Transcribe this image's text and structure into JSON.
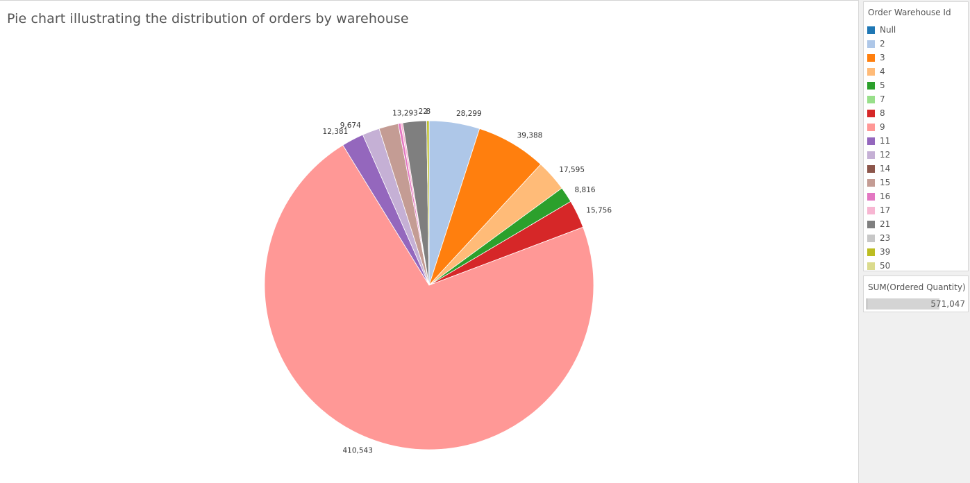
{
  "title": "Pie chart illustrating the distribution of orders by warehouse",
  "legend": {
    "title": "Order Warehouse Id",
    "items": [
      {
        "label": "Null",
        "color": "#1f77b4"
      },
      {
        "label": "2",
        "color": "#aec7e8"
      },
      {
        "label": "3",
        "color": "#ff7f0e"
      },
      {
        "label": "4",
        "color": "#ffbb78"
      },
      {
        "label": "5",
        "color": "#2ca02c"
      },
      {
        "label": "7",
        "color": "#98df8a"
      },
      {
        "label": "8",
        "color": "#d62728"
      },
      {
        "label": "9",
        "color": "#ff9896"
      },
      {
        "label": "11",
        "color": "#9467bd"
      },
      {
        "label": "12",
        "color": "#c5b0d5"
      },
      {
        "label": "14",
        "color": "#8c564b"
      },
      {
        "label": "15",
        "color": "#c49c94"
      },
      {
        "label": "16",
        "color": "#e377c2"
      },
      {
        "label": "17",
        "color": "#f7b6d2"
      },
      {
        "label": "21",
        "color": "#7f7f7f"
      },
      {
        "label": "23",
        "color": "#c7c7c7"
      },
      {
        "label": "39",
        "color": "#bcbd22"
      },
      {
        "label": "50",
        "color": "#dbdb8d"
      }
    ]
  },
  "size_legend": {
    "title": "SUM(Ordered Quantity)",
    "value": "571,047",
    "fill": 0.7
  },
  "chart_data": {
    "type": "pie",
    "title": "Pie chart illustrating the distribution of orders by warehouse",
    "measure": "SUM(Ordered Quantity)",
    "total": 571047,
    "slices": [
      {
        "category": "2",
        "value": 28299,
        "label": "28,299",
        "color": "#aec7e8"
      },
      {
        "category": "3",
        "value": 39388,
        "label": "39,388",
        "color": "#ff7f0e"
      },
      {
        "category": "4",
        "value": 17595,
        "label": "17,595",
        "color": "#ffbb78"
      },
      {
        "category": "5",
        "value": 8816,
        "label": "8,816",
        "color": "#2ca02c"
      },
      {
        "category": "8",
        "value": 15756,
        "label": "15,756",
        "color": "#d62728"
      },
      {
        "category": "9",
        "value": 410543,
        "label": "410,543",
        "color": "#ff9896"
      },
      {
        "category": "11",
        "value": 12381,
        "label": "12,381",
        "color": "#9467bd"
      },
      {
        "category": "12",
        "value": 9674,
        "label": "9,674",
        "color": "#c5b0d5"
      },
      {
        "category": "15",
        "value": 10800,
        "label": "",
        "color": "#c49c94"
      },
      {
        "category": "16",
        "value": 1500,
        "label": "",
        "color": "#e377c2"
      },
      {
        "category": "17",
        "value": 1100,
        "label": "",
        "color": "#f7b6d2"
      },
      {
        "category": "21",
        "value": 13293,
        "label": "13,293",
        "color": "#7f7f7f"
      },
      {
        "category": "23",
        "value": 22,
        "label": "22",
        "color": "#c7c7c7"
      },
      {
        "category": "50",
        "value": 8,
        "label": "8",
        "color": "#dbdb8d"
      },
      {
        "category": "39",
        "value": 1300,
        "label": "",
        "color": "#bcbd22"
      }
    ]
  }
}
